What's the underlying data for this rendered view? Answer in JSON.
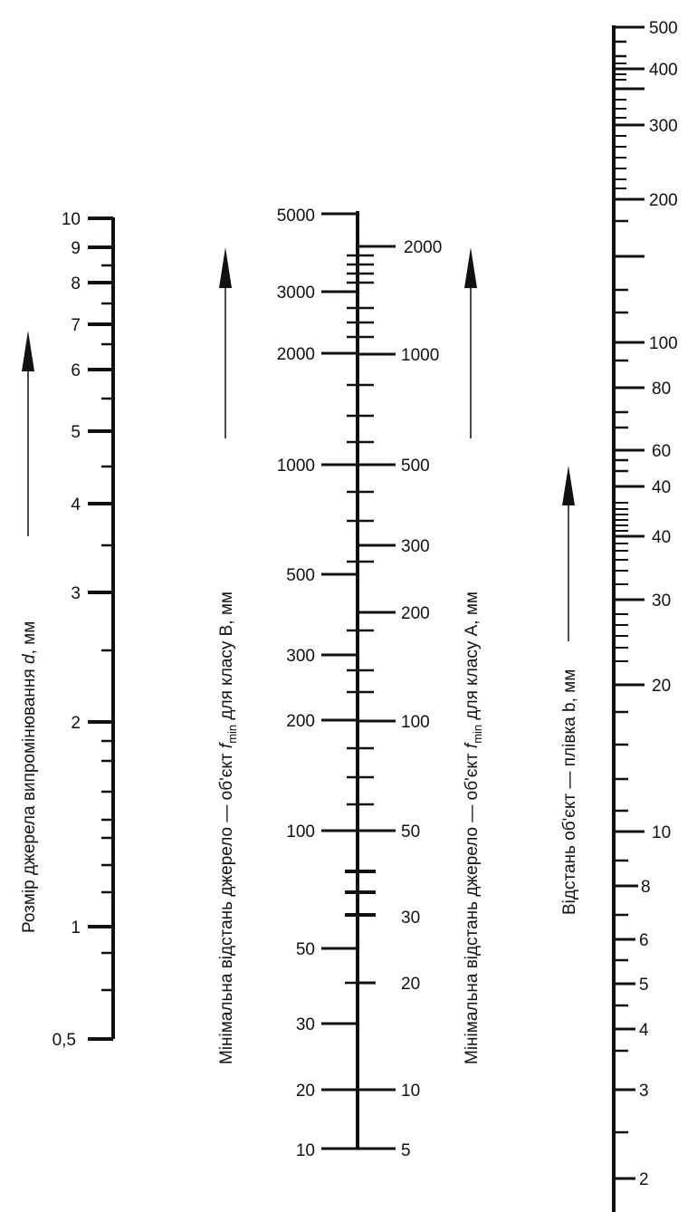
{
  "axes": {
    "d": {
      "label_prefix": "Розмір джерела випромінювання ",
      "label_var": "d",
      "label_suffix": ", мм",
      "ticks": [
        "10",
        "9",
        "8",
        "7",
        "6",
        "5",
        "4",
        "3",
        "2",
        "1",
        "0,5"
      ]
    },
    "fB": {
      "label_prefix": "Мінімальна відстань джерело — об'єкт ",
      "label_var": "f",
      "label_sub": "min",
      "label_suffix": " для класу В, мм",
      "ticks": [
        "5000",
        "3000",
        "2000",
        "1000",
        "500",
        "300",
        "200",
        "100",
        "50",
        "30",
        "20",
        "10"
      ]
    },
    "fA": {
      "label_prefix": "Мінімальна відстань джерело — об'єкт ",
      "label_var": "f",
      "label_sub": "min",
      "label_suffix": " для класу А, мм",
      "ticks": [
        "2000",
        "1000",
        "500",
        "300",
        "200",
        "100",
        "50",
        "30",
        "20",
        "10",
        "5"
      ]
    },
    "b": {
      "label": "Відстань об'єкт — плівка b, мм",
      "ticks": [
        "500",
        "400",
        "300",
        "200",
        "100",
        "80",
        "60",
        "40",
        "40",
        "30",
        "20",
        "10",
        "8",
        "6",
        "5",
        "4",
        "3",
        "2"
      ]
    }
  },
  "colors": {
    "ink": "#111111",
    "background": "#ffffff"
  },
  "icons": [
    "arrow-up-icon"
  ]
}
